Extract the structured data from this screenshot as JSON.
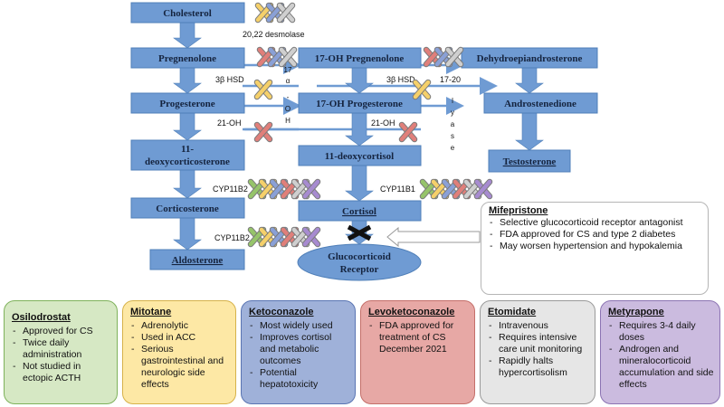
{
  "nodes": {
    "cholesterol": "Cholesterol",
    "pregnenolone": "Pregnenolone",
    "progesterone": "Progesterone",
    "deoxycorticosterone_l1": "11-",
    "deoxycorticosterone_l2": "deoxycorticosterone",
    "corticosterone": "Corticosterone",
    "aldosterone": "Aldosterone",
    "oh_pregnenolone": "17-OH Pregnenolone",
    "oh_progesterone": "17-OH Progesterone",
    "deoxycortisol": "11-deoxycortisol",
    "cortisol": "Cortisol",
    "receptor_l1": "Glucocorticoid",
    "receptor_l2": "Receptor",
    "dhea": "Dehydroepiandrosterone",
    "androstenedione": "Androstenedione",
    "testosterone": "Testosterone"
  },
  "enzymes": {
    "desmolase": "20,22 desmolase",
    "hsd_left": "3β HSD",
    "hsd_right": "3β HSD",
    "oh21_left": "21-OH",
    "oh21_right": "21-OH",
    "lyase_ratio": "17-20",
    "cyp11b2_a": "CYP11B2",
    "cyp11b2_b": "CYP11B2",
    "cyp11b1": "CYP11B1",
    "alpha_vertical": [
      "17",
      "α",
      "-",
      "O",
      "H"
    ],
    "lyase_vertical": [
      "l",
      "y",
      "a",
      "s",
      "e"
    ]
  },
  "colors": {
    "osilodrostat": "#96c46a",
    "mitotane": "#f5d06a",
    "ketoconazole": "#8aa0d6",
    "levoketoconazole": "#e07f7a",
    "etomidate": "#cfcfcf",
    "metyrapone": "#a78bd0",
    "node": "#6f9bd3",
    "block": "#111111"
  },
  "mifepristone": {
    "title": "Mifepristone",
    "items": [
      "Selective glucocorticoid receptor antagonist",
      "FDA approved for CS and type 2 diabetes",
      "May worsen hypertension and hypokalemia"
    ]
  },
  "cards": {
    "osilodrostat": {
      "title": "Osilodrostat",
      "items": [
        "Approved for CS",
        "Twice daily administration",
        "Not studied in ectopic ACTH"
      ]
    },
    "mitotane": {
      "title": "Mitotane",
      "items": [
        "Adrenolytic",
        "Used in ACC",
        "Serious gastrointestinal and neurologic side effects"
      ]
    },
    "ketoconazole": {
      "title": "Ketoconazole",
      "items": [
        "Most widely used",
        "Improves cortisol and metabolic outcomes",
        "Potential hepatotoxicity"
      ]
    },
    "levoketoconazole": {
      "title": "Levoketoconazole",
      "items": [
        "FDA approved for treatment of CS December 2021"
      ]
    },
    "etomidate": {
      "title": "Etomidate",
      "items": [
        "Intravenous",
        "Requires intensive care unit monitoring",
        "Rapidly halts hypercortisolism"
      ]
    },
    "metyrapone": {
      "title": "Metyrapone",
      "items": [
        "Requires 3-4 daily doses",
        "Androgen and mineralocorticoid accumulation and side effects"
      ]
    }
  }
}
